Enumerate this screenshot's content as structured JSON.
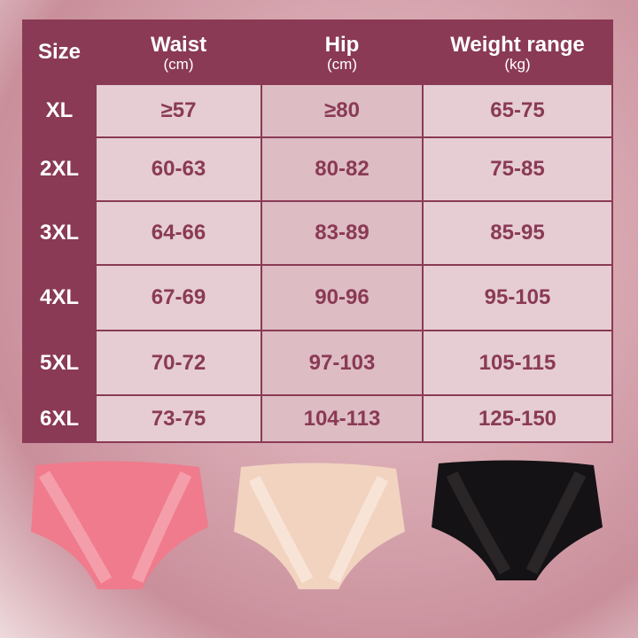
{
  "headers": [
    {
      "label": "Size",
      "unit": ""
    },
    {
      "label": "Waist",
      "unit": "(cm)"
    },
    {
      "label": "Hip",
      "unit": "(cm)"
    },
    {
      "label": "Weight range",
      "unit": "(kg)"
    }
  ],
  "rows": [
    {
      "size": "XL",
      "waist": "≥57",
      "hip": "≥80",
      "weight": "65-75"
    },
    {
      "size": "2XL",
      "waist": "60-63",
      "hip": "80-82",
      "weight": "75-85"
    },
    {
      "size": "3XL",
      "waist": "64-66",
      "hip": "83-89",
      "weight": "85-95"
    },
    {
      "size": "4XL",
      "waist": "67-69",
      "hip": "90-96",
      "weight": "95-105"
    },
    {
      "size": "5XL",
      "waist": "70-72",
      "hip": "97-103",
      "weight": "105-115"
    },
    {
      "size": "6XL",
      "waist": "73-75",
      "hip": "104-113",
      "weight": "125-150"
    }
  ],
  "products": [
    {
      "color_name": "pink",
      "color": "#f07b8c"
    },
    {
      "color_name": "nude",
      "color": "#f1d3c0"
    },
    {
      "color_name": "black",
      "color": "#141214"
    }
  ],
  "accent": "#8a3a55"
}
